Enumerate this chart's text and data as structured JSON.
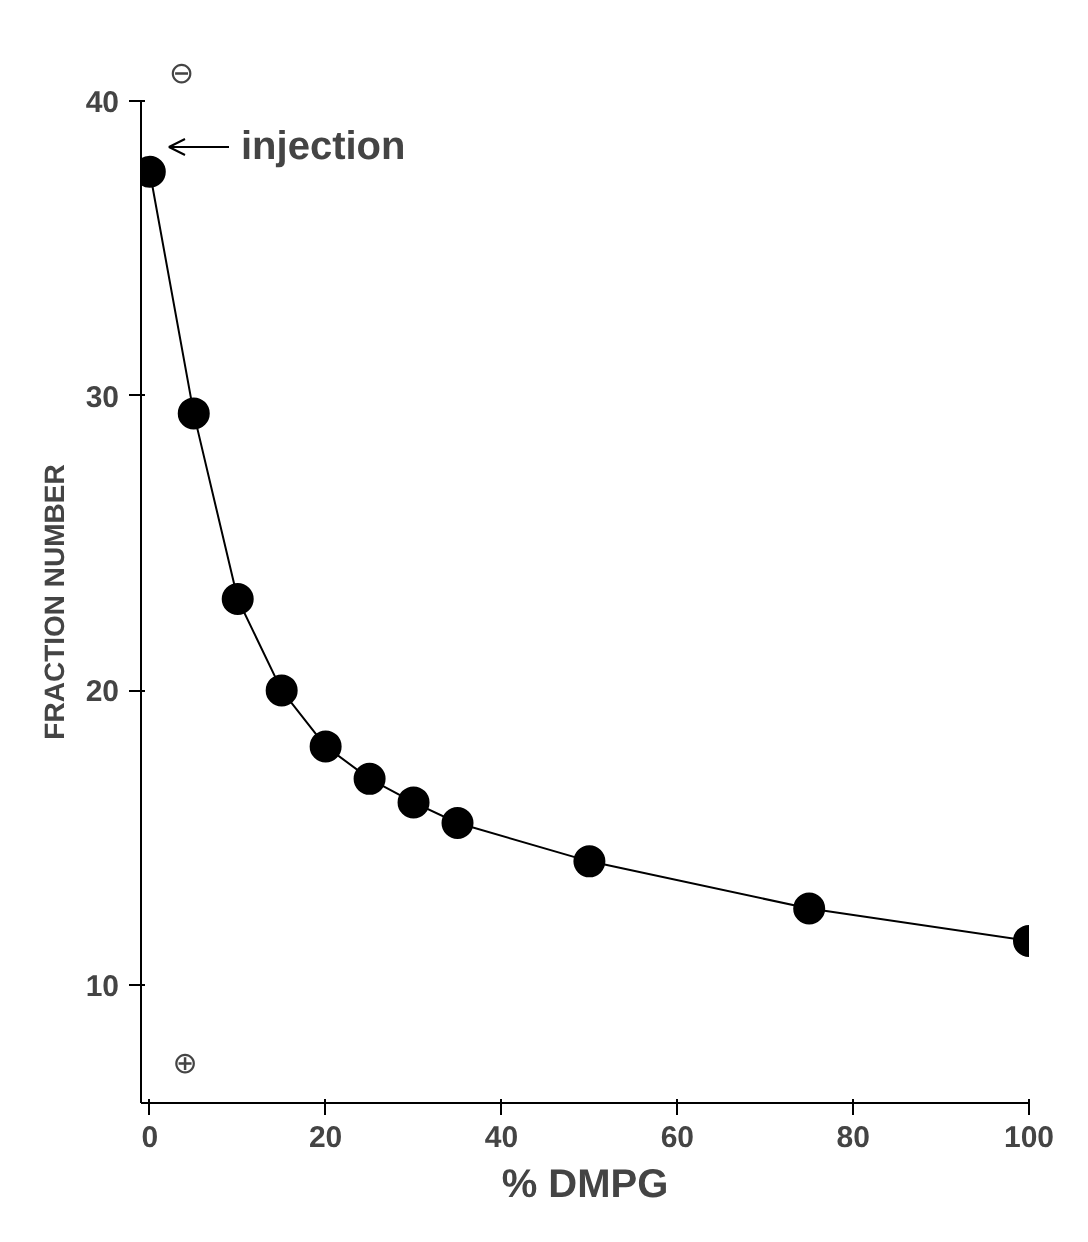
{
  "chart_data": {
    "type": "line",
    "xlabel": "% DMPG",
    "ylabel": "FRACTION NUMBER",
    "x": [
      0,
      5,
      10,
      15,
      20,
      25,
      30,
      35,
      50,
      75,
      100
    ],
    "series": [
      {
        "color": "#000000",
        "values": [
          37.6,
          29.4,
          23.1,
          20.0,
          18.1,
          17.0,
          16.2,
          15.5,
          14.2,
          12.6,
          11.5
        ]
      }
    ],
    "xlim": [
      -1,
      100
    ],
    "ylim": [
      6,
      40
    ],
    "xticks": [
      0,
      20,
      40,
      60,
      80,
      100
    ],
    "yticks": [
      10,
      20,
      30,
      40
    ],
    "marker": "circle",
    "line_style": "solid",
    "grid": false,
    "annotations": [
      "injection",
      "⊖",
      "⊕"
    ]
  }
}
